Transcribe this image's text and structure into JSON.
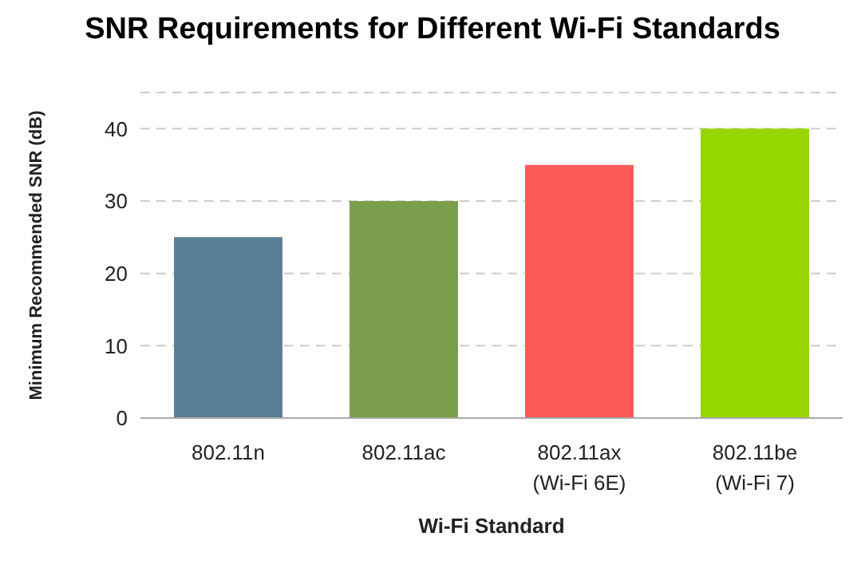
{
  "chart_data": {
    "type": "bar",
    "title": "SNR Requirements for Different Wi-Fi Standards",
    "xlabel": "Wi-Fi Standard",
    "ylabel": "Minimum Recommended SNR (dB)",
    "categories": [
      "802.11n",
      "802.11ac",
      "802.11ax (Wi-Fi 6E)",
      "802.11be (Wi-Fi 7)"
    ],
    "values": [
      25,
      30,
      35,
      40
    ],
    "colors": [
      "#5a7f96",
      "#7a9e4b",
      "#ff5a5a",
      "#96d600"
    ],
    "ylim": [
      0,
      45
    ],
    "yticks": [
      0,
      10,
      20,
      30,
      40
    ],
    "grid": "y"
  }
}
